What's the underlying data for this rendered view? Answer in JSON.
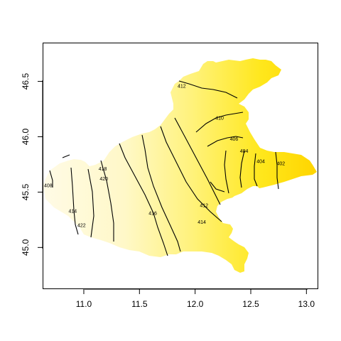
{
  "chart_data": {
    "type": "heatmap",
    "title": "",
    "xlabel": "",
    "ylabel": "",
    "xlim": [
      10.63,
      13.1
    ],
    "ylim": [
      44.63,
      46.85
    ],
    "grid": false,
    "legend": "none",
    "x_ticks": [
      "11.0",
      "11.5",
      "12.0",
      "12.5",
      "13.0"
    ],
    "y_ticks": [
      "45.0",
      "45.5",
      "46.0",
      "46.5"
    ],
    "color_scale": {
      "low": "#fffbe6",
      "high": "#ffd700",
      "direction": "west-to-east"
    },
    "contours": [
      {
        "level": "408",
        "lon": 10.68,
        "lat": 45.56
      },
      {
        "level": "414",
        "lon": 10.9,
        "lat": 45.33
      },
      {
        "level": "422",
        "lon": 10.98,
        "lat": 45.2
      },
      {
        "level": "420",
        "lon": 11.18,
        "lat": 45.62
      },
      {
        "level": "418",
        "lon": 11.17,
        "lat": 45.71
      },
      {
        "level": "416",
        "lon": 11.62,
        "lat": 45.31
      },
      {
        "level": "412",
        "lon": 11.88,
        "lat": 46.46
      },
      {
        "level": "410",
        "lon": 12.22,
        "lat": 46.17
      },
      {
        "level": "406",
        "lon": 12.35,
        "lat": 45.98
      },
      {
        "level": "412",
        "lon": 12.08,
        "lat": 45.38
      },
      {
        "level": "414",
        "lon": 12.06,
        "lat": 45.23
      },
      {
        "level": "404",
        "lon": 12.44,
        "lat": 45.87
      },
      {
        "level": "404",
        "lon": 12.59,
        "lat": 45.78
      },
      {
        "level": "402",
        "lon": 12.77,
        "lat": 45.76
      }
    ]
  }
}
